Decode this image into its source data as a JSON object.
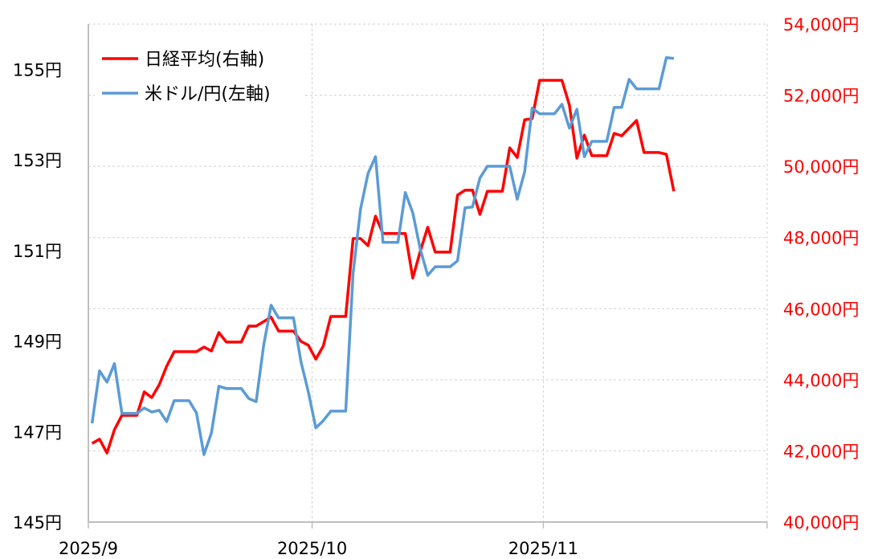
{
  "chart_data": {
    "type": "line",
    "title": "",
    "legend_placement": "top-left",
    "grid": true,
    "x_ticks": [
      "2025/9",
      "2025/10",
      "2025/11"
    ],
    "xlim": [
      "2025-09-01",
      "2025-11-30"
    ],
    "y_left": {
      "ylim": [
        145,
        156
      ],
      "ticks": [
        145,
        147,
        149,
        151,
        153,
        155
      ],
      "tick_labels": [
        "145円",
        "147円",
        "149円",
        "151円",
        "153円",
        "155円"
      ]
    },
    "y_right": {
      "ylim": [
        40000,
        54000
      ],
      "ticks": [
        40000,
        42000,
        44000,
        46000,
        48000,
        50000,
        52000,
        54000
      ],
      "tick_labels": [
        "40,000円",
        "42,000円",
        "44,000円",
        "46,000円",
        "48,000円",
        "50,000円",
        "52,000円",
        "54,000円"
      ],
      "color": "#ff0000"
    },
    "series": [
      {
        "name": "日経平均(右軸)",
        "axis": "right",
        "color": "#ff0000",
        "points": [
          [
            "2025-09-01",
            42210
          ],
          [
            "2025-09-02",
            42330
          ],
          [
            "2025-09-03",
            41940
          ],
          [
            "2025-09-04",
            42600
          ],
          [
            "2025-09-05",
            43000
          ],
          [
            "2025-09-07",
            43000
          ],
          [
            "2025-09-08",
            43660
          ],
          [
            "2025-09-09",
            43500
          ],
          [
            "2025-09-10",
            43860
          ],
          [
            "2025-09-11",
            44380
          ],
          [
            "2025-09-12",
            44790
          ],
          [
            "2025-09-15",
            44790
          ],
          [
            "2025-09-16",
            44920
          ],
          [
            "2025-09-17",
            44810
          ],
          [
            "2025-09-18",
            45330
          ],
          [
            "2025-09-19",
            45060
          ],
          [
            "2025-09-21",
            45060
          ],
          [
            "2025-09-22",
            45510
          ],
          [
            "2025-09-23",
            45510
          ],
          [
            "2025-09-25",
            45760
          ],
          [
            "2025-09-26",
            45370
          ],
          [
            "2025-09-28",
            45370
          ],
          [
            "2025-09-29",
            45080
          ],
          [
            "2025-09-30",
            44970
          ],
          [
            "2025-10-01",
            44580
          ],
          [
            "2025-10-02",
            44950
          ],
          [
            "2025-10-03",
            45780
          ],
          [
            "2025-10-05",
            45780
          ],
          [
            "2025-10-06",
            47970
          ],
          [
            "2025-10-07",
            47970
          ],
          [
            "2025-10-08",
            47770
          ],
          [
            "2025-10-09",
            48600
          ],
          [
            "2025-10-10",
            48110
          ],
          [
            "2025-10-13",
            48110
          ],
          [
            "2025-10-14",
            46860
          ],
          [
            "2025-10-15",
            47610
          ],
          [
            "2025-10-16",
            48290
          ],
          [
            "2025-10-17",
            47590
          ],
          [
            "2025-10-19",
            47590
          ],
          [
            "2025-10-20",
            49190
          ],
          [
            "2025-10-21",
            49330
          ],
          [
            "2025-10-22",
            49330
          ],
          [
            "2025-10-23",
            48650
          ],
          [
            "2025-10-24",
            49300
          ],
          [
            "2025-10-26",
            49300
          ],
          [
            "2025-10-27",
            50520
          ],
          [
            "2025-10-28",
            50250
          ],
          [
            "2025-10-29",
            51310
          ],
          [
            "2025-10-30",
            51340
          ],
          [
            "2025-10-31",
            52420
          ],
          [
            "2025-11-03",
            52420
          ],
          [
            "2025-11-04",
            51720
          ],
          [
            "2025-11-05",
            50230
          ],
          [
            "2025-11-06",
            50880
          ],
          [
            "2025-11-07",
            50300
          ],
          [
            "2025-11-09",
            50300
          ],
          [
            "2025-11-10",
            50930
          ],
          [
            "2025-11-11",
            50860
          ],
          [
            "2025-11-13",
            51290
          ],
          [
            "2025-11-14",
            50390
          ],
          [
            "2025-11-16",
            50390
          ],
          [
            "2025-11-17",
            50340
          ],
          [
            "2025-11-18",
            49300
          ]
        ]
      },
      {
        "name": "米ドル/円(左軸)",
        "axis": "left",
        "color": "#5b9bd5",
        "points": [
          [
            "2025-09-01",
            147.18
          ],
          [
            "2025-09-02",
            148.34
          ],
          [
            "2025-09-03",
            148.09
          ],
          [
            "2025-09-04",
            148.5
          ],
          [
            "2025-09-05",
            147.4
          ],
          [
            "2025-09-07",
            147.4
          ],
          [
            "2025-09-08",
            147.52
          ],
          [
            "2025-09-09",
            147.43
          ],
          [
            "2025-09-10",
            147.47
          ],
          [
            "2025-09-11",
            147.22
          ],
          [
            "2025-09-12",
            147.68
          ],
          [
            "2025-09-14",
            147.68
          ],
          [
            "2025-09-15",
            147.41
          ],
          [
            "2025-09-16",
            146.49
          ],
          [
            "2025-09-17",
            146.97
          ],
          [
            "2025-09-18",
            148.0
          ],
          [
            "2025-09-19",
            147.95
          ],
          [
            "2025-09-21",
            147.95
          ],
          [
            "2025-09-22",
            147.73
          ],
          [
            "2025-09-23",
            147.66
          ],
          [
            "2025-09-24",
            148.9
          ],
          [
            "2025-09-25",
            149.79
          ],
          [
            "2025-09-26",
            149.51
          ],
          [
            "2025-09-28",
            149.51
          ],
          [
            "2025-09-29",
            148.55
          ],
          [
            "2025-09-30",
            147.87
          ],
          [
            "2025-10-01",
            147.08
          ],
          [
            "2025-10-02",
            147.24
          ],
          [
            "2025-10-03",
            147.45
          ],
          [
            "2025-10-05",
            147.45
          ],
          [
            "2025-10-06",
            150.5
          ],
          [
            "2025-10-07",
            151.92
          ],
          [
            "2025-10-08",
            152.7
          ],
          [
            "2025-10-09",
            153.07
          ],
          [
            "2025-10-10",
            151.18
          ],
          [
            "2025-10-12",
            151.18
          ],
          [
            "2025-10-13",
            152.28
          ],
          [
            "2025-10-14",
            151.83
          ],
          [
            "2025-10-15",
            151.03
          ],
          [
            "2025-10-16",
            150.45
          ],
          [
            "2025-10-17",
            150.64
          ],
          [
            "2025-10-19",
            150.64
          ],
          [
            "2025-10-20",
            150.77
          ],
          [
            "2025-10-21",
            151.94
          ],
          [
            "2025-10-22",
            151.96
          ],
          [
            "2025-10-23",
            152.6
          ],
          [
            "2025-10-24",
            152.86
          ],
          [
            "2025-10-27",
            152.86
          ],
          [
            "2025-10-28",
            152.13
          ],
          [
            "2025-10-29",
            152.74
          ],
          [
            "2025-10-30",
            154.14
          ],
          [
            "2025-10-31",
            154.02
          ],
          [
            "2025-11-02",
            154.02
          ],
          [
            "2025-11-03",
            154.23
          ],
          [
            "2025-11-04",
            153.7
          ],
          [
            "2025-11-05",
            154.12
          ],
          [
            "2025-11-06",
            153.07
          ],
          [
            "2025-11-07",
            153.41
          ],
          [
            "2025-11-09",
            153.41
          ],
          [
            "2025-11-10",
            154.16
          ],
          [
            "2025-11-11",
            154.16
          ],
          [
            "2025-11-12",
            154.78
          ],
          [
            "2025-11-13",
            154.57
          ],
          [
            "2025-11-16",
            154.57
          ],
          [
            "2025-11-17",
            155.26
          ],
          [
            "2025-11-18",
            155.24
          ]
        ]
      }
    ]
  }
}
